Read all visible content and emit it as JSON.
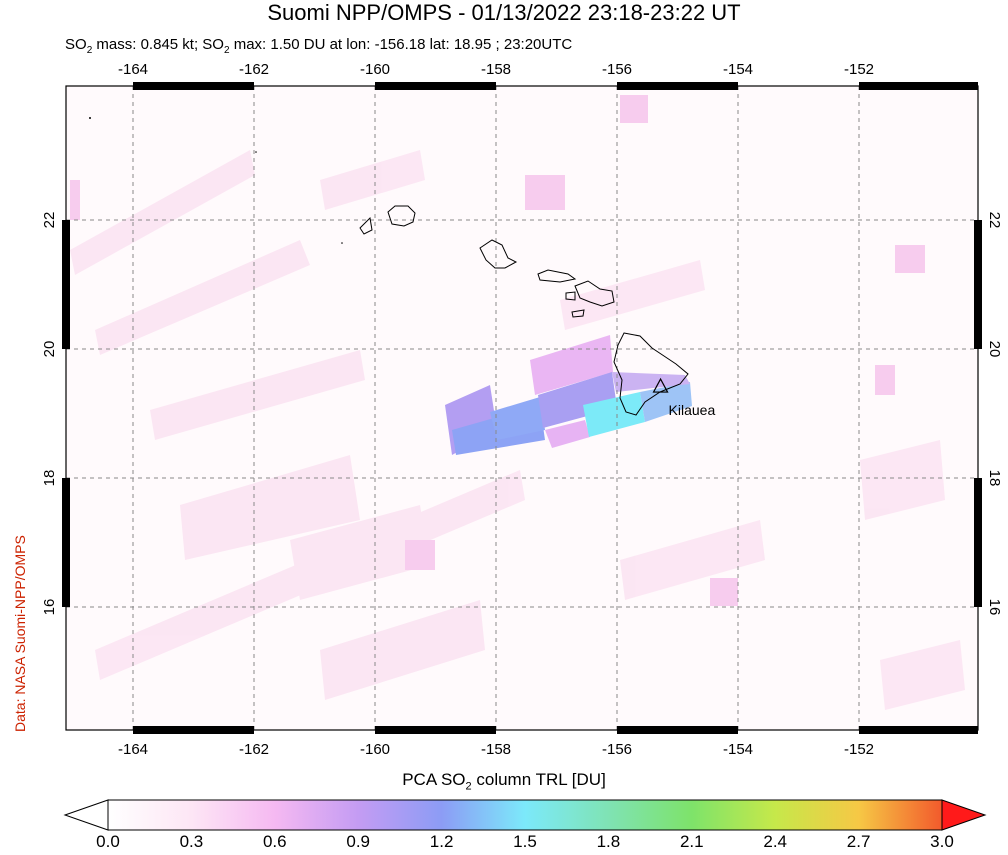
{
  "title": "Suomi NPP/OMPS - 01/13/2022 23:18-23:22 UT",
  "subtitle": {
    "p1": "SO",
    "p1_sub": "2",
    "p2": " mass: 0.845 kt; SO",
    "p2_sub": "2",
    "p3": " max: 1.50 DU at lon: -156.18 lat: 18.95 ; 23:20UTC"
  },
  "credit": "Data: NASA Suomi-NPP/OMPS",
  "map": {
    "lon_min": -165.0,
    "lon_max": -150.0,
    "lat_min": 14.0,
    "lat_max": 24.0,
    "lon_ticks": [
      "-164",
      "-162",
      "-160",
      "-158",
      "-156",
      "-154",
      "-152"
    ],
    "lat_ticks": [
      "22",
      "20",
      "18",
      "16"
    ],
    "volcano": {
      "name": "Kilauea",
      "lon": -155.28,
      "lat": 19.41
    }
  },
  "colorbar": {
    "title_pre": "PCA SO",
    "title_sub": "2",
    "title_post": " column TRL [DU]",
    "labels": [
      "0.0",
      "0.3",
      "0.6",
      "0.9",
      "1.2",
      "1.5",
      "1.8",
      "2.1",
      "2.4",
      "2.7",
      "3.0"
    ],
    "colors": [
      "#ffffff",
      "#fde6f5",
      "#f5b9f2",
      "#c49cf3",
      "#8c9cf5",
      "#7ce9fa",
      "#7fe3b4",
      "#7ee36a",
      "#c6e84a",
      "#f6c845",
      "#f25a2c",
      "#ff1a1a"
    ]
  },
  "colors": {
    "frame": "#000000",
    "credit": "#cc2200"
  }
}
